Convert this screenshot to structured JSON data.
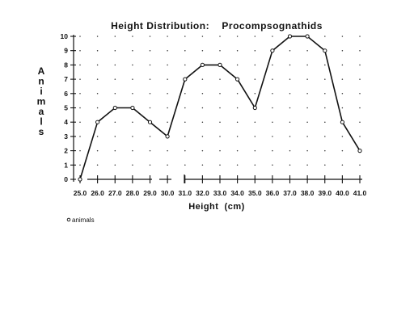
{
  "chart_data": {
    "type": "line",
    "title": "Height Distribution:    Procompsognathids",
    "xlabel": "Height  (cm)",
    "ylabel": "Animals",
    "x": [
      25.0,
      26.0,
      27.0,
      28.0,
      29.0,
      30.0,
      31.0,
      32.0,
      33.0,
      34.0,
      35.0,
      36.0,
      37.0,
      38.0,
      39.0,
      40.0,
      41.0
    ],
    "x_tick_labels": [
      "25.0",
      "26.0",
      "27.0",
      "28.0",
      "29.0",
      "30.0",
      "31.0",
      "32.0",
      "33.0",
      "34.0",
      "35.0",
      "36.0",
      "37.0",
      "38.0",
      "39.0",
      "40.0",
      "41.0"
    ],
    "series": [
      {
        "name": "animals",
        "values": [
          0,
          4,
          5,
          5,
          4,
          3,
          7,
          8,
          8,
          7,
          5,
          9,
          10,
          10,
          9,
          4,
          2
        ]
      }
    ],
    "y_ticks": [
      0,
      1,
      2,
      3,
      4,
      5,
      6,
      7,
      8,
      9,
      10
    ],
    "xlim": [
      25.0,
      41.0
    ],
    "ylim": [
      0,
      10
    ],
    "grid": "dotted",
    "legend_position": "bottom-left",
    "legend_label": "animals",
    "line_color": "#111111"
  }
}
